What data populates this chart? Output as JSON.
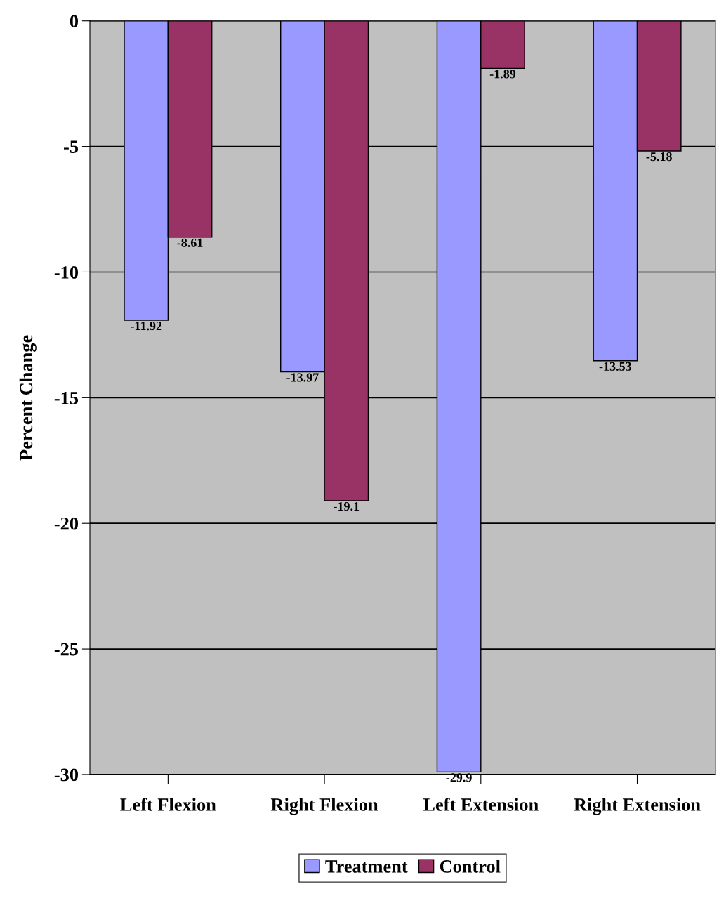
{
  "chart_data": {
    "type": "bar",
    "ylabel": "Percent Change",
    "categories": [
      "Left Flexion",
      "Right Flexion",
      "Left Extension",
      "Right Extension"
    ],
    "series": [
      {
        "name": "Treatment",
        "color": "#9999ff",
        "values": [
          -11.92,
          -13.97,
          -29.9,
          -13.53
        ]
      },
      {
        "name": "Control",
        "color": "#993366",
        "values": [
          -8.61,
          -19.1,
          -1.89,
          -5.18
        ]
      }
    ],
    "ylim": [
      -30,
      0
    ],
    "yticks": [
      0,
      -5,
      -10,
      -15,
      -20,
      -25,
      -30
    ],
    "grid": "y",
    "legend": "bottom",
    "data_labels": true
  }
}
